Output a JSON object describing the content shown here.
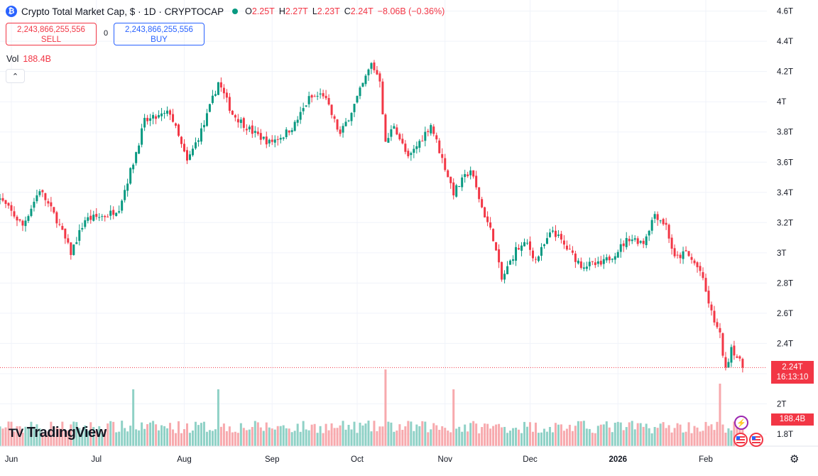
{
  "header": {
    "logo_glyph": "₿",
    "title": "Crypto Total Market Cap, $ · 1D · CRYPTOCAP",
    "ohlc": [
      {
        "label": "O",
        "value": "2.25T"
      },
      {
        "label": "H",
        "value": "2.27T"
      },
      {
        "label": "L",
        "value": "2.23T"
      },
      {
        "label": "C",
        "value": "2.24T"
      }
    ],
    "change": "−8.06B (−0.36%)"
  },
  "trade": {
    "sell_price": "2,243,866,255,556",
    "sell_label": "SELL",
    "spread": "0",
    "buy_price": "2,243,866,255,556",
    "buy_label": "BUY"
  },
  "volume_legend": {
    "label": "Vol",
    "value": "188.4B"
  },
  "collapse_glyph": "⌃",
  "brand": {
    "mark": "TV",
    "name": "TradingView"
  },
  "price_badge": {
    "price": "2.24T",
    "countdown": "16:13:10"
  },
  "volume_badge": "188.4B",
  "icons": {
    "event": "lightning-icon",
    "flag": "us-flag-icon",
    "settings": "gear-icon"
  },
  "colors": {
    "up": "#089981",
    "down": "#f23645",
    "up_volume": "#8fd1c6",
    "down_volume": "#f7a9ad",
    "grid": "#f0f3fa",
    "accent": "#2962ff"
  },
  "chart_data": {
    "type": "candlestick",
    "title": "Crypto Total Market Cap, $ · 1D · CRYPTOCAP",
    "y_axis_ticks": [
      "4.6T",
      "4.4T",
      "4.2T",
      "4T",
      "3.8T",
      "3.6T",
      "3.4T",
      "3.2T",
      "3T",
      "2.8T",
      "2.6T",
      "2.4T",
      "2.2T",
      "2T",
      "1.8T"
    ],
    "y_axis_values": [
      4.6,
      4.4,
      4.2,
      4.0,
      3.8,
      3.6,
      3.4,
      3.2,
      3.0,
      2.8,
      2.6,
      2.4,
      2.2,
      2.0,
      1.8
    ],
    "ylim": [
      1.72,
      4.65
    ],
    "x_axis_labels": [
      "Jun",
      "Jul",
      "Aug",
      "Sep",
      "Oct",
      "Nov",
      "Dec",
      "2026",
      "Feb"
    ],
    "x_axis_dates": [
      "2025-06-01",
      "2025-07-01",
      "2025-08-01",
      "2025-09-01",
      "2025-10-01",
      "2025-11-01",
      "2025-12-01",
      "2026-01-01",
      "2026-02-01"
    ],
    "close_path": [
      [
        "2025-05-27",
        3.38
      ],
      [
        "2025-06-05",
        3.18
      ],
      [
        "2025-06-11",
        3.42
      ],
      [
        "2025-06-17",
        3.22
      ],
      [
        "2025-06-22",
        3.0
      ],
      [
        "2025-06-27",
        3.22
      ],
      [
        "2025-07-05",
        3.25
      ],
      [
        "2025-07-09",
        3.3
      ],
      [
        "2025-07-14",
        3.6
      ],
      [
        "2025-07-18",
        3.87
      ],
      [
        "2025-07-23",
        3.9
      ],
      [
        "2025-07-27",
        3.93
      ],
      [
        "2025-08-02",
        3.6
      ],
      [
        "2025-08-08",
        3.85
      ],
      [
        "2025-08-13",
        4.13
      ],
      [
        "2025-08-18",
        3.92
      ],
      [
        "2025-08-25",
        3.8
      ],
      [
        "2025-08-31",
        3.73
      ],
      [
        "2025-09-05",
        3.78
      ],
      [
        "2025-09-09",
        3.85
      ],
      [
        "2025-09-14",
        4.02
      ],
      [
        "2025-09-19",
        4.05
      ],
      [
        "2025-09-25",
        3.78
      ],
      [
        "2025-09-30",
        3.98
      ],
      [
        "2025-10-06",
        4.25
      ],
      [
        "2025-10-09",
        4.15
      ],
      [
        "2025-10-11",
        3.72
      ],
      [
        "2025-10-14",
        3.85
      ],
      [
        "2025-10-19",
        3.62
      ],
      [
        "2025-10-27",
        3.85
      ],
      [
        "2025-10-31",
        3.62
      ],
      [
        "2025-11-04",
        3.4
      ],
      [
        "2025-11-10",
        3.55
      ],
      [
        "2025-11-14",
        3.3
      ],
      [
        "2025-11-18",
        3.1
      ],
      [
        "2025-11-21",
        2.82
      ],
      [
        "2025-11-26",
        3.02
      ],
      [
        "2025-11-30",
        3.06
      ],
      [
        "2025-12-03",
        2.95
      ],
      [
        "2025-12-09",
        3.15
      ],
      [
        "2025-12-13",
        3.05
      ],
      [
        "2025-12-19",
        2.92
      ],
      [
        "2025-12-26",
        2.92
      ],
      [
        "2025-12-31",
        3.0
      ],
      [
        "2026-01-05",
        3.1
      ],
      [
        "2026-01-10",
        3.07
      ],
      [
        "2026-01-14",
        3.26
      ],
      [
        "2026-01-18",
        3.18
      ],
      [
        "2026-01-21",
        2.96
      ],
      [
        "2026-01-25",
        3.0
      ],
      [
        "2026-01-30",
        2.88
      ],
      [
        "2026-02-03",
        2.6
      ],
      [
        "2026-02-06",
        2.45
      ],
      [
        "2026-02-08",
        2.22
      ],
      [
        "2026-02-10",
        2.38
      ],
      [
        "2026-02-14",
        2.24
      ]
    ],
    "volume_spikes": [
      [
        "2025-07-14",
        2.0
      ],
      [
        "2025-08-13",
        2.0
      ],
      [
        "2025-10-11",
        2.7
      ],
      [
        "2025-11-04",
        2.0
      ],
      [
        "2026-02-06",
        2.2
      ]
    ],
    "last_price": 2.24,
    "last_volume": "188.4B",
    "grid": true
  }
}
